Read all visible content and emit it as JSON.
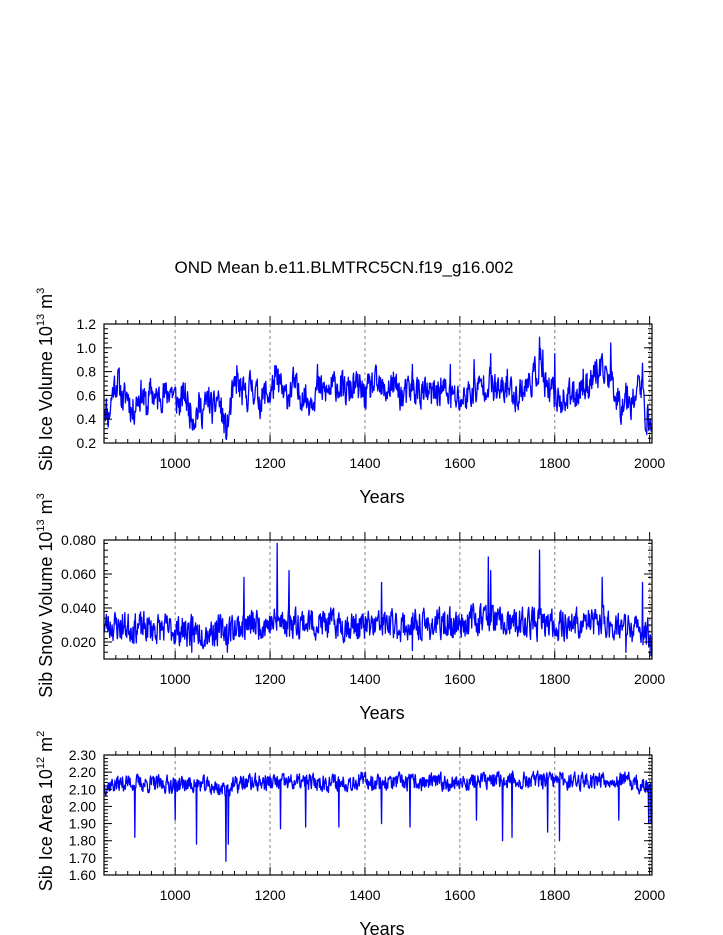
{
  "title": "OND Mean b.e11.BLMTRC5CN.f19_g16.002",
  "chart_data": [
    {
      "type": "line",
      "ylabel_main": "Sib Ice Volume 10",
      "ylabel_exp": "13",
      "ylabel_unit": " m",
      "ylabel_unit_exp": "3",
      "xlabel": "Years",
      "xlim": [
        850,
        2005
      ],
      "ylim": [
        0.2,
        1.2
      ],
      "xticks": [
        1000,
        1200,
        1400,
        1600,
        1800,
        2000
      ],
      "xtick_labels": [
        "1000",
        "1200",
        "1400",
        "1600",
        "1800",
        "2000"
      ],
      "yticks": [
        0.2,
        0.4,
        0.6,
        0.8,
        1.0,
        1.2
      ],
      "ytick_labels": [
        "0.2",
        "0.4",
        "0.6",
        "0.8",
        "1.0",
        "1.2"
      ],
      "grid_x": [
        1000,
        1200,
        1400,
        1600,
        1800,
        2000
      ],
      "color": "#0000ff",
      "series_name": "Sib Ice Volume",
      "anchors": [
        [
          850,
          0.55
        ],
        [
          860,
          0.42
        ],
        [
          870,
          0.68
        ],
        [
          880,
          0.72
        ],
        [
          890,
          0.55
        ],
        [
          900,
          0.62
        ],
        [
          910,
          0.45
        ],
        [
          920,
          0.58
        ],
        [
          930,
          0.62
        ],
        [
          940,
          0.5
        ],
        [
          950,
          0.65
        ],
        [
          960,
          0.55
        ],
        [
          970,
          0.62
        ],
        [
          980,
          0.6
        ],
        [
          990,
          0.66
        ],
        [
          1000,
          0.58
        ],
        [
          1010,
          0.52
        ],
        [
          1020,
          0.62
        ],
        [
          1030,
          0.48
        ],
        [
          1040,
          0.42
        ],
        [
          1050,
          0.5
        ],
        [
          1060,
          0.47
        ],
        [
          1070,
          0.58
        ],
        [
          1080,
          0.45
        ],
        [
          1090,
          0.6
        ],
        [
          1100,
          0.42
        ],
        [
          1108,
          0.28
        ],
        [
          1120,
          0.58
        ],
        [
          1130,
          0.72
        ],
        [
          1140,
          0.62
        ],
        [
          1150,
          0.58
        ],
        [
          1160,
          0.7
        ],
        [
          1170,
          0.62
        ],
        [
          1180,
          0.55
        ],
        [
          1190,
          0.62
        ],
        [
          1200,
          0.6
        ],
        [
          1210,
          0.72
        ],
        [
          1220,
          0.7
        ],
        [
          1230,
          0.58
        ],
        [
          1240,
          0.62
        ],
        [
          1250,
          0.7
        ],
        [
          1260,
          0.6
        ],
        [
          1270,
          0.62
        ],
        [
          1280,
          0.55
        ],
        [
          1300,
          0.66
        ],
        [
          1320,
          0.62
        ],
        [
          1340,
          0.7
        ],
        [
          1360,
          0.62
        ],
        [
          1380,
          0.68
        ],
        [
          1400,
          0.6
        ],
        [
          1420,
          0.7
        ],
        [
          1440,
          0.62
        ],
        [
          1460,
          0.7
        ],
        [
          1480,
          0.58
        ],
        [
          1500,
          0.66
        ],
        [
          1520,
          0.62
        ],
        [
          1540,
          0.6
        ],
        [
          1560,
          0.66
        ],
        [
          1580,
          0.6
        ],
        [
          1600,
          0.55
        ],
        [
          1620,
          0.62
        ],
        [
          1640,
          0.66
        ],
        [
          1660,
          0.72
        ],
        [
          1680,
          0.62
        ],
        [
          1700,
          0.66
        ],
        [
          1720,
          0.6
        ],
        [
          1740,
          0.68
        ],
        [
          1760,
          0.78
        ],
        [
          1770,
          0.88
        ],
        [
          1780,
          0.65
        ],
        [
          1790,
          0.62
        ],
        [
          1800,
          0.6
        ],
        [
          1820,
          0.55
        ],
        [
          1840,
          0.62
        ],
        [
          1860,
          0.65
        ],
        [
          1880,
          0.75
        ],
        [
          1900,
          0.78
        ],
        [
          1910,
          0.8
        ],
        [
          1920,
          0.72
        ],
        [
          1930,
          0.62
        ],
        [
          1940,
          0.5
        ],
        [
          1950,
          0.62
        ],
        [
          1960,
          0.55
        ],
        [
          1970,
          0.6
        ],
        [
          1980,
          0.72
        ],
        [
          1990,
          0.45
        ],
        [
          2000,
          0.35
        ],
        [
          2005,
          0.4
        ]
      ],
      "amplitude": 0.12,
      "spikes": [
        [
          1108,
          0.23
        ],
        [
          1130,
          0.85
        ],
        [
          1210,
          0.85
        ],
        [
          1300,
          0.86
        ],
        [
          1500,
          0.86
        ],
        [
          1580,
          0.86
        ],
        [
          1630,
          0.9
        ],
        [
          1665,
          0.95
        ],
        [
          1700,
          0.32
        ],
        [
          1700,
          0.82
        ],
        [
          1768,
          1.09
        ],
        [
          1775,
          0.98
        ],
        [
          1800,
          0.95
        ],
        [
          1860,
          0.82
        ],
        [
          1888,
          0.9
        ],
        [
          1918,
          1.04
        ],
        [
          1985,
          0.87
        ],
        [
          2003,
          0.3
        ]
      ],
      "seed": 11
    },
    {
      "type": "line",
      "ylabel_main": "Sib Snow Volume 10",
      "ylabel_exp": "13",
      "ylabel_unit": " m",
      "ylabel_unit_exp": "3",
      "xlabel": "Years",
      "xlim": [
        850,
        2005
      ],
      "ylim": [
        0.01,
        0.08
      ],
      "xticks": [
        1000,
        1200,
        1400,
        1600,
        1800,
        2000
      ],
      "xtick_labels": [
        "1000",
        "1200",
        "1400",
        "1600",
        "1800",
        "2000"
      ],
      "yticks": [
        0.02,
        0.04,
        0.06,
        0.08
      ],
      "ytick_labels": [
        "0.020",
        "0.040",
        "0.060",
        "0.080"
      ],
      "grid_x": [
        1000,
        1200,
        1400,
        1600,
        1800,
        2000
      ],
      "color": "#0000ff",
      "series_name": "Sib Snow Volume",
      "anchors": [
        [
          850,
          0.03
        ],
        [
          900,
          0.029
        ],
        [
          950,
          0.028
        ],
        [
          1000,
          0.027
        ],
        [
          1050,
          0.026
        ],
        [
          1100,
          0.027
        ],
        [
          1150,
          0.03
        ],
        [
          1200,
          0.031
        ],
        [
          1250,
          0.032
        ],
        [
          1300,
          0.031
        ],
        [
          1350,
          0.03
        ],
        [
          1400,
          0.029
        ],
        [
          1450,
          0.03
        ],
        [
          1500,
          0.029
        ],
        [
          1550,
          0.03
        ],
        [
          1600,
          0.031
        ],
        [
          1650,
          0.035
        ],
        [
          1700,
          0.03
        ],
        [
          1750,
          0.031
        ],
        [
          1800,
          0.03
        ],
        [
          1850,
          0.031
        ],
        [
          1900,
          0.032
        ],
        [
          1950,
          0.028
        ],
        [
          2000,
          0.025
        ],
        [
          2005,
          0.02
        ]
      ],
      "amplitude": 0.008,
      "spikes": [
        [
          1145,
          0.058
        ],
        [
          1215,
          0.078
        ],
        [
          1240,
          0.062
        ],
        [
          1435,
          0.055
        ],
        [
          1660,
          0.07
        ],
        [
          1665,
          0.062
        ],
        [
          1768,
          0.074
        ],
        [
          1900,
          0.058
        ],
        [
          1985,
          0.055
        ],
        [
          1035,
          0.014
        ],
        [
          1110,
          0.014
        ],
        [
          1500,
          0.015
        ],
        [
          1950,
          0.014
        ],
        [
          2003,
          0.012
        ]
      ],
      "seed": 23
    },
    {
      "type": "line",
      "ylabel_main": "Sib Ice Area 10",
      "ylabel_exp": "12",
      "ylabel_unit": " m",
      "ylabel_unit_exp": "2",
      "xlabel": "Years",
      "xlim": [
        850,
        2005
      ],
      "ylim": [
        1.6,
        2.3
      ],
      "xticks": [
        1000,
        1200,
        1400,
        1600,
        1800,
        2000
      ],
      "xtick_labels": [
        "1000",
        "1200",
        "1400",
        "1600",
        "1800",
        "2000"
      ],
      "yticks": [
        1.6,
        1.7,
        1.8,
        1.9,
        2.0,
        2.1,
        2.2,
        2.3
      ],
      "ytick_labels": [
        "1.60",
        "1.70",
        "1.80",
        "1.90",
        "2.00",
        "2.10",
        "2.20",
        "2.30"
      ],
      "grid_x": [
        1000,
        1200,
        1400,
        1600,
        1800,
        2000
      ],
      "color": "#0000ff",
      "series_name": "Sib Ice Area",
      "anchors": [
        [
          850,
          2.12
        ],
        [
          900,
          2.14
        ],
        [
          950,
          2.13
        ],
        [
          1000,
          2.13
        ],
        [
          1050,
          2.13
        ],
        [
          1100,
          2.1
        ],
        [
          1150,
          2.14
        ],
        [
          1200,
          2.14
        ],
        [
          1250,
          2.14
        ],
        [
          1300,
          2.14
        ],
        [
          1350,
          2.14
        ],
        [
          1400,
          2.15
        ],
        [
          1450,
          2.14
        ],
        [
          1500,
          2.14
        ],
        [
          1550,
          2.14
        ],
        [
          1600,
          2.14
        ],
        [
          1650,
          2.15
        ],
        [
          1700,
          2.15
        ],
        [
          1750,
          2.15
        ],
        [
          1800,
          2.15
        ],
        [
          1850,
          2.15
        ],
        [
          1900,
          2.16
        ],
        [
          1950,
          2.15
        ],
        [
          2000,
          2.1
        ],
        [
          2005,
          2.05
        ]
      ],
      "amplitude": 0.045,
      "spikes": [
        [
          915,
          1.82
        ],
        [
          1000,
          1.92
        ],
        [
          1045,
          1.78
        ],
        [
          1107,
          1.68
        ],
        [
          1112,
          1.78
        ],
        [
          1222,
          1.87
        ],
        [
          1275,
          1.88
        ],
        [
          1345,
          1.88
        ],
        [
          1435,
          1.9
        ],
        [
          1495,
          1.88
        ],
        [
          1635,
          1.92
        ],
        [
          1690,
          1.8
        ],
        [
          1710,
          1.82
        ],
        [
          1785,
          1.85
        ],
        [
          1810,
          1.8
        ],
        [
          1935,
          1.92
        ],
        [
          1998,
          1.9
        ],
        [
          2003,
          1.9
        ]
      ],
      "seed": 37
    }
  ]
}
